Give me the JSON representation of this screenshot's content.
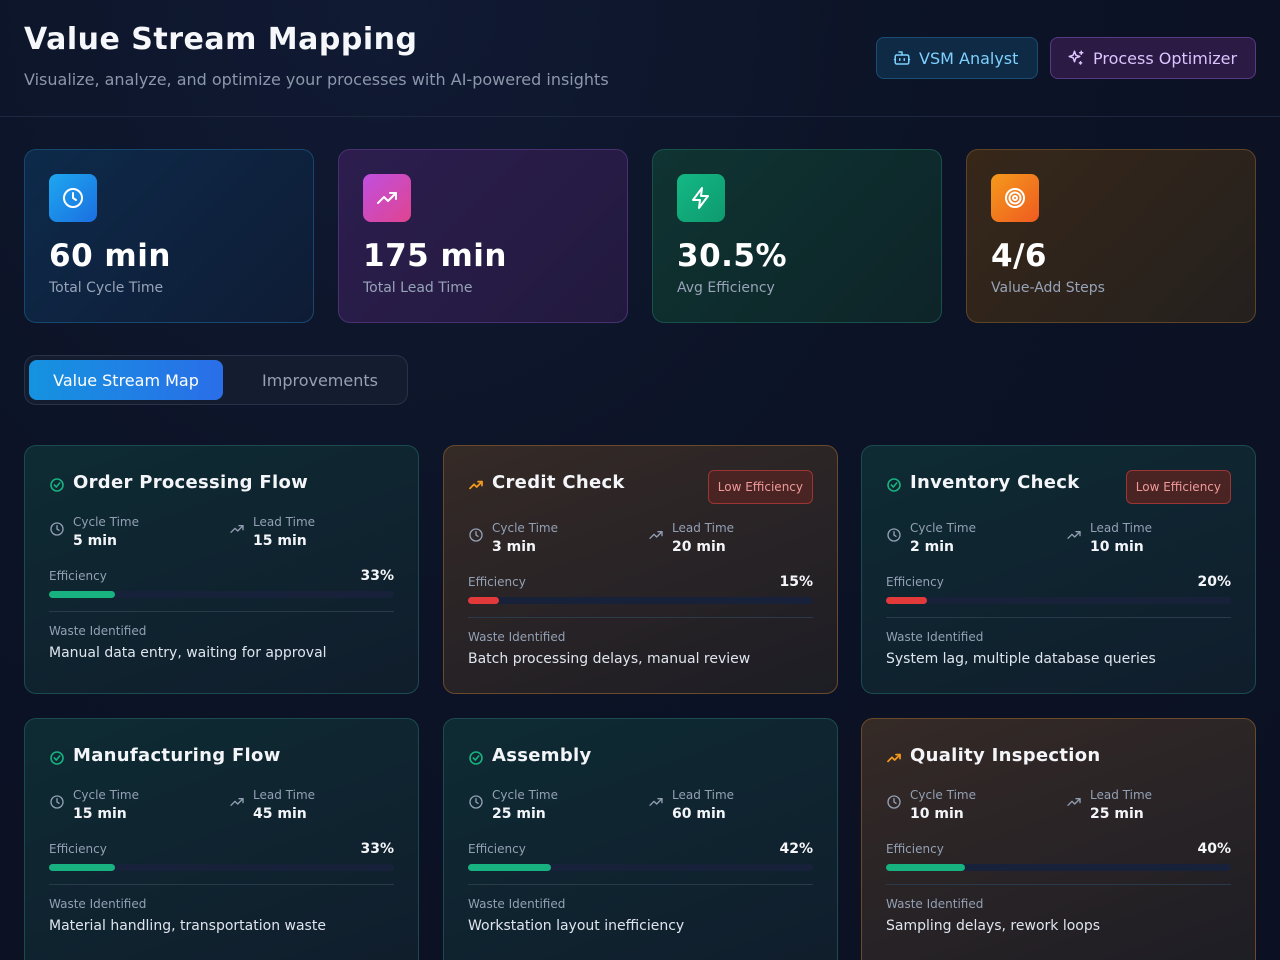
{
  "header": {
    "title": "Value Stream Mapping",
    "subtitle": "Visualize, analyze, and optimize your processes with AI-powered insights",
    "buttons": [
      {
        "label": "VSM Analyst",
        "icon": "bot-icon"
      },
      {
        "label": "Process Optimizer",
        "icon": "sparkles-icon"
      }
    ]
  },
  "stats": [
    {
      "value": "60 min",
      "label": "Total Cycle Time",
      "icon": "clock-icon"
    },
    {
      "value": "175 min",
      "label": "Total Lead Time",
      "icon": "trending-up-icon"
    },
    {
      "value": "30.5%",
      "label": "Avg Efficiency",
      "icon": "zap-icon"
    },
    {
      "value": "4/6",
      "label": "Value-Add Steps",
      "icon": "target-icon"
    }
  ],
  "tabs": [
    {
      "label": "Value Stream Map",
      "active": true
    },
    {
      "label": "Improvements",
      "active": false
    }
  ],
  "labels": {
    "cycle_time": "Cycle Time",
    "lead_time": "Lead Time",
    "efficiency": "Efficiency",
    "waste": "Waste Identified",
    "low_efficiency": "Low Efficiency"
  },
  "steps": [
    {
      "name": "Order Processing Flow",
      "status": "good",
      "cycle": "5 min",
      "lead": "15 min",
      "efficiency": "33%",
      "efficiency_fraction": 0.19,
      "waste": "Manual data entry, waiting for approval",
      "low": false
    },
    {
      "name": "Credit Check",
      "status": "warn",
      "cycle": "3 min",
      "lead": "20 min",
      "efficiency": "15%",
      "efficiency_fraction": 0.09,
      "waste": "Batch processing delays, manual review",
      "low": true
    },
    {
      "name": "Inventory Check",
      "status": "good",
      "cycle": "2 min",
      "lead": "10 min",
      "efficiency": "20%",
      "efficiency_fraction": 0.12,
      "waste": "System lag, multiple database queries",
      "low": true
    },
    {
      "name": "Manufacturing Flow",
      "status": "good",
      "cycle": "15 min",
      "lead": "45 min",
      "efficiency": "33%",
      "efficiency_fraction": 0.19,
      "waste": "Material handling, transportation waste",
      "low": false
    },
    {
      "name": "Assembly",
      "status": "good",
      "cycle": "25 min",
      "lead": "60 min",
      "efficiency": "42%",
      "efficiency_fraction": 0.24,
      "waste": "Workstation layout inefficiency",
      "low": false
    },
    {
      "name": "Quality Inspection",
      "status": "warn",
      "cycle": "10 min",
      "lead": "25 min",
      "efficiency": "40%",
      "efficiency_fraction": 0.23,
      "waste": "Sampling delays, rework loops",
      "low": false
    }
  ],
  "colors": {
    "good": "#17b27f",
    "warn": "#f59a1c",
    "low": "#e23a3a",
    "accent": "#1593e0"
  }
}
